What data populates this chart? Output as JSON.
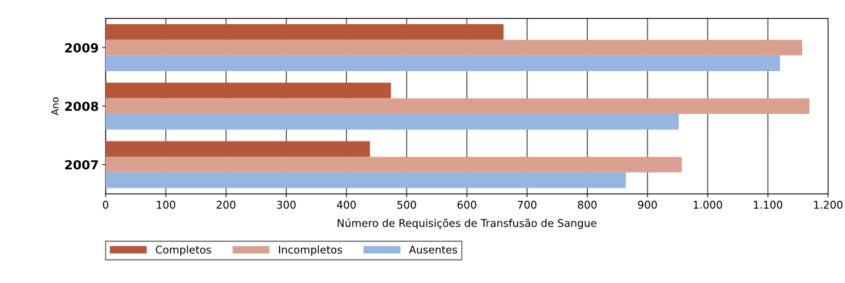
{
  "chart_data": {
    "type": "bar",
    "orientation": "horizontal",
    "xlabel": "Número de Requisições de Transfusão de Sangue",
    "ylabel": "Ano",
    "categories": [
      "2009",
      "2008",
      "2007"
    ],
    "series": [
      {
        "name": "Completos",
        "color": "#b5573a",
        "values": [
          661,
          474,
          439
        ]
      },
      {
        "name": "Incompletos",
        "color": "#d9a090",
        "values": [
          1157,
          1169,
          957
        ]
      },
      {
        "name": "Ausentes",
        "color": "#94b6e0",
        "values": [
          1120,
          952,
          864
        ]
      }
    ],
    "xlim": [
      0,
      1200
    ],
    "xticks": [
      0,
      100,
      200,
      300,
      400,
      500,
      600,
      700,
      800,
      900,
      {
        "value": 1000,
        "label": "1.000"
      },
      {
        "value": 1100,
        "label": "1.100"
      },
      {
        "value": 1200,
        "label": "1.200"
      }
    ],
    "grid": "x",
    "legend": "bottom"
  }
}
